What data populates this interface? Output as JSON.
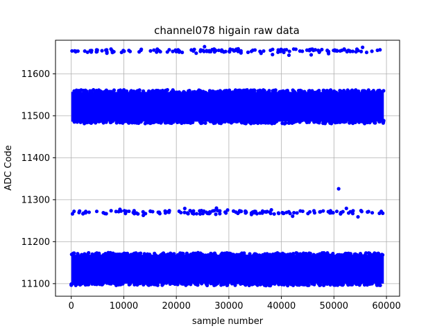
{
  "chart_data": {
    "type": "scatter",
    "title": "channel078 higain raw data",
    "xlabel": "sample number",
    "ylabel": "ADC Code",
    "xlim": [
      -3000,
      62500
    ],
    "ylim": [
      11070,
      11680
    ],
    "xticks": [
      0,
      10000,
      20000,
      30000,
      40000,
      50000,
      60000
    ],
    "yticks": [
      11100,
      11200,
      11300,
      11400,
      11500,
      11600
    ],
    "grid": true,
    "marker_color": "#0000ff",
    "n_samples": 60000,
    "x_range": [
      0,
      59500
    ],
    "bands": [
      {
        "name": "low",
        "y_min": 11097,
        "y_max": 11172,
        "density": "dense"
      },
      {
        "name": "lower-mid",
        "y_min": 11260,
        "y_max": 11280,
        "density": "sparse"
      },
      {
        "name": "high",
        "y_min": 11483,
        "y_max": 11560,
        "density": "dense"
      },
      {
        "name": "top",
        "y_min": 11645,
        "y_max": 11665,
        "density": "sparse"
      }
    ],
    "outliers": [
      {
        "x": 50900,
        "y": 11326
      }
    ]
  }
}
